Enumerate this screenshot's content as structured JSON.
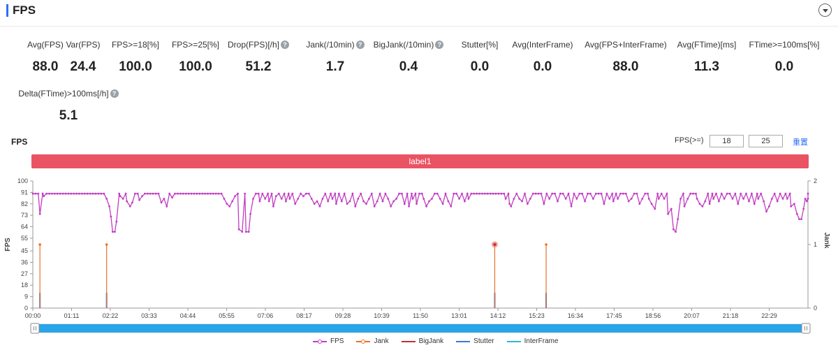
{
  "header": {
    "title": "FPS",
    "collapse_icon": "chevron-down-icon"
  },
  "metrics": [
    {
      "label": "Avg(FPS)",
      "value": "88.0",
      "help": false
    },
    {
      "label": "Var(FPS)",
      "value": "24.4",
      "help": false
    },
    {
      "label": "FPS>=18[%]",
      "value": "100.0",
      "help": false
    },
    {
      "label": "FPS>=25[%]",
      "value": "100.0",
      "help": false
    },
    {
      "label": "Drop(FPS)[/h]",
      "value": "51.2",
      "help": true
    },
    {
      "label": "Jank(/10min)",
      "value": "1.7",
      "help": true
    },
    {
      "label": "BigJank(/10min)",
      "value": "0.4",
      "help": true
    },
    {
      "label": "Stutter[%]",
      "value": "0.0",
      "help": false
    },
    {
      "label": "Avg(InterFrame)",
      "value": "0.0",
      "help": false
    },
    {
      "label": "Avg(FPS+InterFrame)",
      "value": "88.0",
      "help": false
    },
    {
      "label": "Avg(FTime)[ms]",
      "value": "11.3",
      "help": false
    },
    {
      "label": "FTime>=100ms[%]",
      "value": "0.0",
      "help": false
    },
    {
      "label": "Delta(FTime)>100ms[/h]",
      "value": "5.1",
      "help": true
    }
  ],
  "chart_header": {
    "title": "FPS",
    "filter_label": "FPS(>=)",
    "threshold_low": "18",
    "threshold_high": "25",
    "reset_label": "重置"
  },
  "label_bar": {
    "text": "label1",
    "color": "#ea5363"
  },
  "chart_data": {
    "type": "line",
    "ylabel": "FPS",
    "y2label": "Jank",
    "ylim": [
      0,
      100
    ],
    "y2lim": [
      0,
      2
    ],
    "yticks": [
      "0",
      "9",
      "18",
      "27",
      "36",
      "45",
      "55",
      "64",
      "73",
      "82",
      "91",
      "100"
    ],
    "y2ticks": [
      "0",
      "1",
      "2"
    ],
    "x_range_minutes": [
      0,
      1418
    ],
    "xticks": [
      "00:00",
      "01:11",
      "02:22",
      "03:33",
      "04:44",
      "05:55",
      "07:06",
      "08:17",
      "09:28",
      "10:39",
      "11:50",
      "13:01",
      "14:12",
      "15:23",
      "16:34",
      "17:45",
      "18:56",
      "20:07",
      "21:18",
      "22:29"
    ],
    "series": [
      {
        "name": "FPS",
        "color": "#c23dc2",
        "axis": "left",
        "baseline": 90,
        "dips": [
          [
            13,
            74
          ],
          [
            20,
            88
          ],
          [
            135,
            86
          ],
          [
            140,
            80
          ],
          [
            143,
            72
          ],
          [
            146,
            60
          ],
          [
            150,
            60
          ],
          [
            153,
            68
          ],
          [
            160,
            88
          ],
          [
            165,
            86
          ],
          [
            172,
            84
          ],
          [
            178,
            80
          ],
          [
            182,
            83
          ],
          [
            195,
            85
          ],
          [
            200,
            88
          ],
          [
            235,
            83
          ],
          [
            240,
            86
          ],
          [
            245,
            80
          ],
          [
            255,
            87
          ],
          [
            350,
            86
          ],
          [
            355,
            82
          ],
          [
            360,
            80
          ],
          [
            365,
            84
          ],
          [
            370,
            88
          ],
          [
            377,
            62
          ],
          [
            383,
            60
          ],
          [
            390,
            60
          ],
          [
            395,
            60
          ],
          [
            398,
            74
          ],
          [
            403,
            86
          ],
          [
            415,
            84
          ],
          [
            425,
            86
          ],
          [
            432,
            84
          ],
          [
            440,
            80
          ],
          [
            445,
            88
          ],
          [
            455,
            86
          ],
          [
            463,
            84
          ],
          [
            470,
            86
          ],
          [
            480,
            82
          ],
          [
            485,
            86
          ],
          [
            495,
            88
          ],
          [
            510,
            86
          ],
          [
            515,
            82
          ],
          [
            520,
            84
          ],
          [
            525,
            80
          ],
          [
            530,
            86
          ],
          [
            540,
            84
          ],
          [
            548,
            86
          ],
          [
            555,
            82
          ],
          [
            565,
            84
          ],
          [
            575,
            82
          ],
          [
            580,
            84
          ],
          [
            590,
            80
          ],
          [
            595,
            86
          ],
          [
            605,
            84
          ],
          [
            610,
            82
          ],
          [
            615,
            86
          ],
          [
            625,
            80
          ],
          [
            630,
            84
          ],
          [
            640,
            84
          ],
          [
            650,
            86
          ],
          [
            655,
            80
          ],
          [
            660,
            84
          ],
          [
            665,
            86
          ],
          [
            680,
            82
          ],
          [
            688,
            80
          ],
          [
            695,
            86
          ],
          [
            702,
            82
          ],
          [
            715,
            86
          ],
          [
            720,
            80
          ],
          [
            725,
            84
          ],
          [
            730,
            86
          ],
          [
            745,
            86
          ],
          [
            750,
            82
          ],
          [
            760,
            84
          ],
          [
            765,
            80
          ],
          [
            780,
            86
          ],
          [
            790,
            84
          ],
          [
            797,
            86
          ],
          [
            865,
            86
          ],
          [
            872,
            82
          ],
          [
            875,
            80
          ],
          [
            880,
            86
          ],
          [
            890,
            86
          ],
          [
            895,
            84
          ],
          [
            905,
            82
          ],
          [
            910,
            86
          ],
          [
            935,
            82
          ],
          [
            945,
            86
          ],
          [
            960,
            84
          ],
          [
            975,
            86
          ],
          [
            985,
            80
          ],
          [
            995,
            86
          ],
          [
            1010,
            84
          ],
          [
            1025,
            86
          ],
          [
            1045,
            82
          ],
          [
            1055,
            86
          ],
          [
            1062,
            84
          ],
          [
            1070,
            86
          ],
          [
            1090,
            84
          ],
          [
            1095,
            86
          ],
          [
            1110,
            82
          ],
          [
            1115,
            86
          ],
          [
            1127,
            86
          ],
          [
            1132,
            82
          ],
          [
            1138,
            78
          ],
          [
            1145,
            86
          ],
          [
            1155,
            86
          ],
          [
            1162,
            74
          ],
          [
            1168,
            78
          ],
          [
            1172,
            62
          ],
          [
            1176,
            60
          ],
          [
            1180,
            70
          ],
          [
            1185,
            86
          ],
          [
            1192,
            80
          ],
          [
            1198,
            86
          ],
          [
            1215,
            86
          ],
          [
            1220,
            82
          ],
          [
            1225,
            80
          ],
          [
            1230,
            84
          ],
          [
            1238,
            82
          ],
          [
            1245,
            86
          ],
          [
            1255,
            84
          ],
          [
            1265,
            86
          ],
          [
            1280,
            86
          ],
          [
            1290,
            82
          ],
          [
            1300,
            86
          ],
          [
            1310,
            84
          ],
          [
            1320,
            82
          ],
          [
            1327,
            86
          ],
          [
            1337,
            84
          ],
          [
            1342,
            76
          ],
          [
            1347,
            80
          ],
          [
            1352,
            86
          ],
          [
            1362,
            84
          ],
          [
            1372,
            86
          ],
          [
            1380,
            86
          ],
          [
            1387,
            80
          ],
          [
            1393,
            82
          ],
          [
            1398,
            74
          ],
          [
            1402,
            70
          ],
          [
            1406,
            70
          ],
          [
            1410,
            78
          ],
          [
            1413,
            86
          ],
          [
            1416,
            84
          ],
          [
            1418,
            86
          ]
        ]
      },
      {
        "name": "Jank",
        "color": "#e8722a",
        "axis": "right",
        "spikes": [
          13,
          135,
          845,
          939
        ],
        "spike_value": 1
      },
      {
        "name": "BigJank",
        "color": "#c23030",
        "axis": "right",
        "spikes": []
      },
      {
        "name": "Stutter",
        "color": "#3a78d8",
        "axis": "left",
        "spikes": [
          13,
          135,
          845,
          939
        ],
        "spike_value": 12
      },
      {
        "name": "InterFrame",
        "color": "#28b8d8",
        "axis": "left",
        "spikes": []
      }
    ],
    "highlight_marker": {
      "x": 845,
      "value": 1,
      "series": "Jank"
    },
    "data_zoom": {
      "start": 0,
      "end": 1
    },
    "grid": false,
    "legend_position": "bottom-center"
  }
}
